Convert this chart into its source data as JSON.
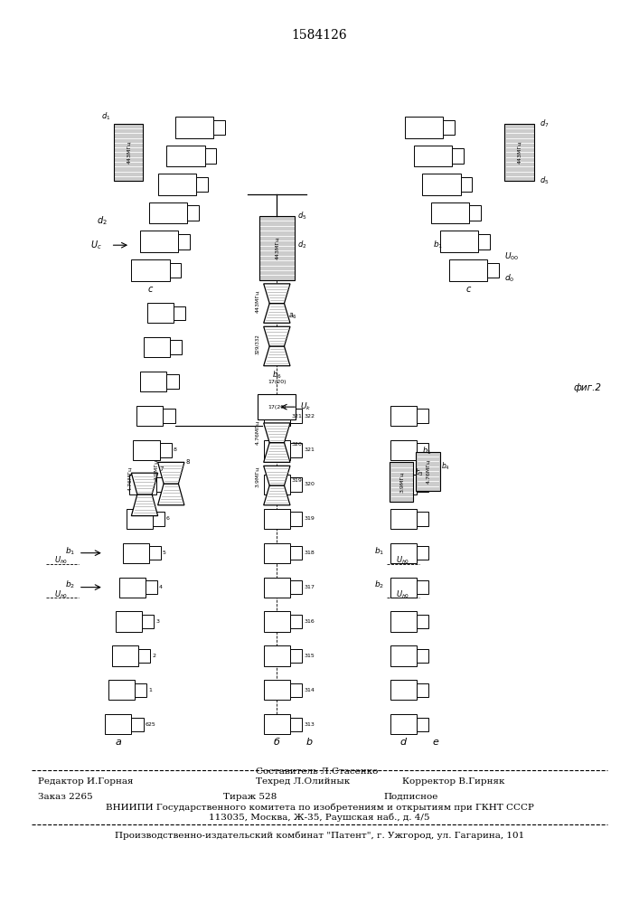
{
  "title": "1584126",
  "bg_color": "#ffffff",
  "footer": {
    "sestavitel": "Составитель Л.Стасенко",
    "redaktor": "Редактор И.Горная",
    "tehred": "Техред Л.Олийнык",
    "korrektor": "Корректор В.Гирняк",
    "zakaz": "Заказ 2265",
    "tirazh": "Тираж 528",
    "podpisnoe": "Подписное",
    "vniipи": "ВНИИПИ Государственного комитета по изобретениям и открытиям при ГКНТ СССР",
    "address": "113035, Москва, Ж-35, Раушская наб., д. 4/5",
    "kombinat": "Производственно-издательский комбинат \"Патент\", г. Ужгород, ул. Гагарина, 101"
  },
  "hline1": 0.148,
  "hline2": 0.088
}
